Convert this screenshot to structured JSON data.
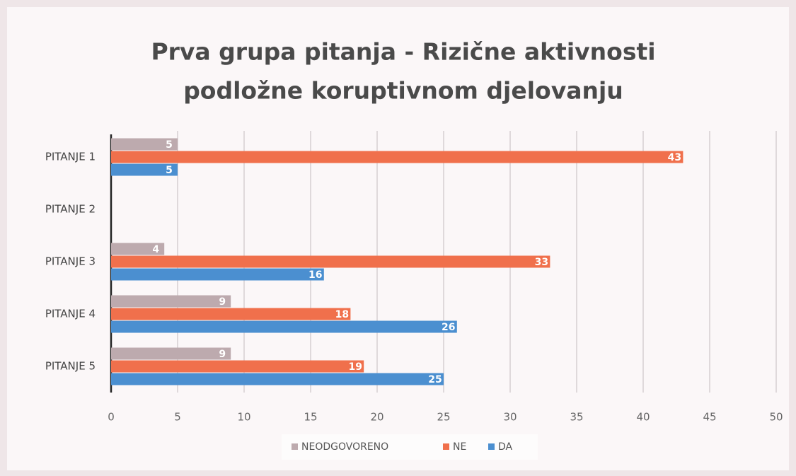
{
  "chart_data": {
    "type": "bar",
    "orientation": "horizontal",
    "title": [
      "Prva grupa pitanja - Rizične aktivnosti",
      "podložne koruptivnom djelovanju"
    ],
    "categories": [
      "PITANJE 1",
      "PITANJE 2",
      "PITANJE 3",
      "PITANJE 4",
      "PITANJE 5"
    ],
    "series": [
      {
        "name": "NEODGOVORENO",
        "color": "#bdaaae",
        "values": [
          5,
          null,
          4,
          9,
          9
        ]
      },
      {
        "name": "NE",
        "color": "#f0704c",
        "values": [
          43,
          null,
          33,
          18,
          19
        ]
      },
      {
        "name": "DA",
        "color": "#4b8fd0",
        "values": [
          5,
          null,
          16,
          26,
          25
        ]
      }
    ],
    "xlim": [
      0,
      50
    ],
    "xticks": [
      0,
      5,
      10,
      15,
      20,
      25,
      30,
      35,
      40,
      45,
      50
    ],
    "grid": true,
    "legend": "bottom"
  }
}
